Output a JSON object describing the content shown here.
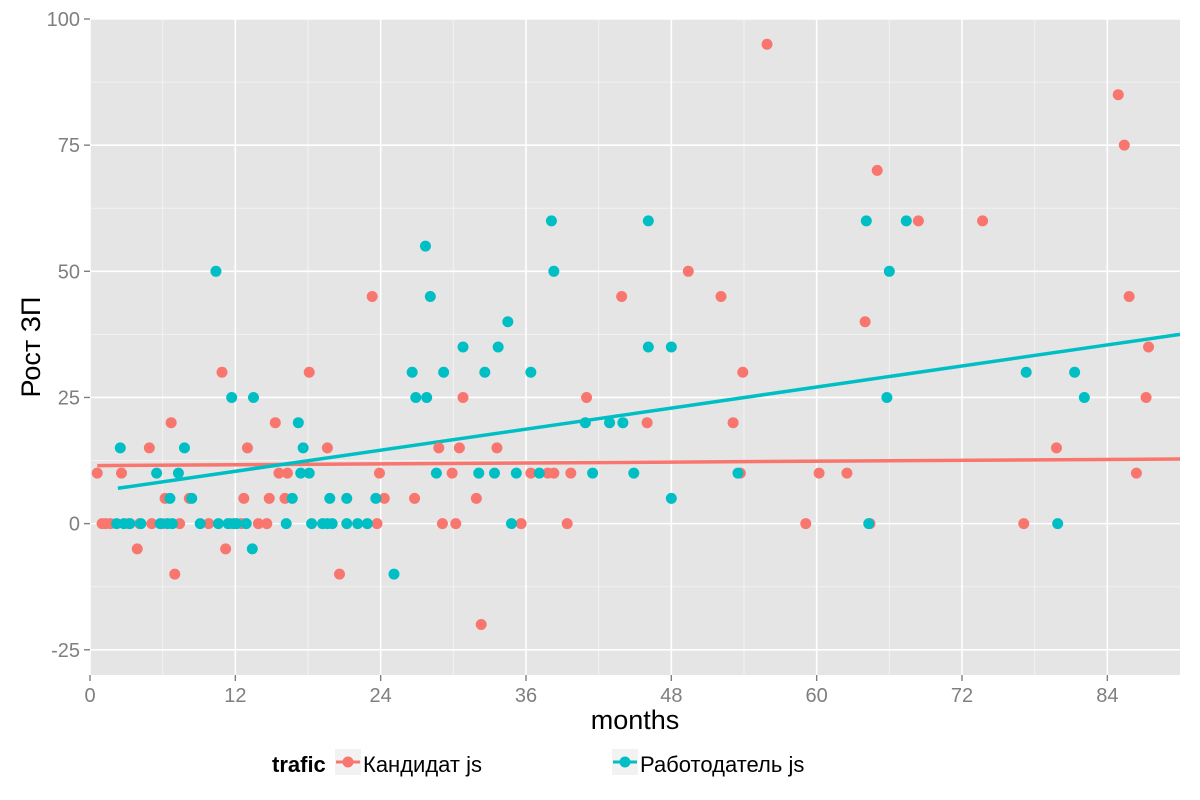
{
  "chart_data": {
    "type": "scatter",
    "xlabel": "months",
    "ylabel": "Рост ЗП",
    "xlim": [
      0,
      90
    ],
    "ylim": [
      -30,
      100
    ],
    "x_ticks": [
      0,
      12,
      24,
      36,
      48,
      60,
      72,
      84
    ],
    "y_ticks": [
      -25,
      0,
      25,
      50,
      75,
      100
    ],
    "grid": true,
    "legend": {
      "title": "trafic",
      "position": "bottom"
    },
    "series": [
      {
        "name": "Кандидат js",
        "color": "#F8766D",
        "points": [
          [
            0.6,
            10
          ],
          [
            1,
            0
          ],
          [
            1.3,
            0
          ],
          [
            1.7,
            0
          ],
          [
            2.6,
            10
          ],
          [
            3.2,
            0
          ],
          [
            3.9,
            -5
          ],
          [
            4.1,
            0
          ],
          [
            4.9,
            15
          ],
          [
            5.1,
            0
          ],
          [
            6,
            0
          ],
          [
            6.2,
            5
          ],
          [
            6.7,
            20
          ],
          [
            7,
            -10
          ],
          [
            7.4,
            0
          ],
          [
            8.2,
            5
          ],
          [
            9.8,
            0
          ],
          [
            10.9,
            30
          ],
          [
            11.2,
            -5
          ],
          [
            11.6,
            0
          ],
          [
            12.5,
            0
          ],
          [
            12.7,
            5
          ],
          [
            13,
            15
          ],
          [
            13.9,
            0
          ],
          [
            14.6,
            0
          ],
          [
            14.8,
            5
          ],
          [
            15.3,
            20
          ],
          [
            15.6,
            10
          ],
          [
            16.1,
            5
          ],
          [
            16.3,
            10
          ],
          [
            18.1,
            30
          ],
          [
            19.6,
            15
          ],
          [
            20.6,
            -10
          ],
          [
            23.3,
            45
          ],
          [
            23.7,
            0
          ],
          [
            23.9,
            10
          ],
          [
            24.3,
            5
          ],
          [
            26.8,
            5
          ],
          [
            28.8,
            15
          ],
          [
            29.1,
            0
          ],
          [
            29.9,
            10
          ],
          [
            30.2,
            0
          ],
          [
            30.5,
            15
          ],
          [
            30.8,
            25
          ],
          [
            31.9,
            5
          ],
          [
            32.3,
            -20
          ],
          [
            33.6,
            15
          ],
          [
            35.6,
            0
          ],
          [
            36.4,
            10
          ],
          [
            37.8,
            10
          ],
          [
            38.3,
            10
          ],
          [
            39.4,
            0
          ],
          [
            39.7,
            10
          ],
          [
            41,
            25
          ],
          [
            43.9,
            45
          ],
          [
            46,
            20
          ],
          [
            49.4,
            50
          ],
          [
            52.1,
            45
          ],
          [
            53.1,
            20
          ],
          [
            53.7,
            10
          ],
          [
            53.9,
            30
          ],
          [
            55.9,
            95
          ],
          [
            59.1,
            0
          ],
          [
            60.2,
            10
          ],
          [
            62.5,
            10
          ],
          [
            64,
            40
          ],
          [
            64.4,
            0
          ],
          [
            65,
            70
          ],
          [
            68.4,
            60
          ],
          [
            73.7,
            60
          ],
          [
            77.1,
            0
          ],
          [
            79.8,
            15
          ],
          [
            84.9,
            85
          ],
          [
            85.4,
            75
          ],
          [
            85.8,
            45
          ],
          [
            86.4,
            10
          ],
          [
            87.2,
            25
          ],
          [
            87.4,
            35
          ]
        ],
        "trend": {
          "x": [
            0.6,
            90
          ],
          "y": [
            11.5,
            12.8
          ]
        }
      },
      {
        "name": "Работодатель js",
        "color": "#00BFC4",
        "points": [
          [
            2.2,
            0
          ],
          [
            2.5,
            15
          ],
          [
            2.8,
            0
          ],
          [
            3.3,
            0
          ],
          [
            4.2,
            0
          ],
          [
            5.5,
            10
          ],
          [
            5.8,
            0
          ],
          [
            6.4,
            0
          ],
          [
            6.6,
            5
          ],
          [
            6.8,
            0
          ],
          [
            7.3,
            10
          ],
          [
            7.8,
            15
          ],
          [
            8.4,
            5
          ],
          [
            9.1,
            0
          ],
          [
            10.4,
            50
          ],
          [
            10.6,
            0
          ],
          [
            11.4,
            0
          ],
          [
            11.7,
            25
          ],
          [
            11.9,
            0
          ],
          [
            12.1,
            0
          ],
          [
            12.9,
            0
          ],
          [
            13.4,
            -5
          ],
          [
            13.5,
            25
          ],
          [
            16.2,
            0
          ],
          [
            16.7,
            5
          ],
          [
            17.2,
            20
          ],
          [
            17.4,
            10
          ],
          [
            17.6,
            15
          ],
          [
            18.1,
            10
          ],
          [
            18.3,
            0
          ],
          [
            19.2,
            0
          ],
          [
            19.6,
            0
          ],
          [
            19.8,
            5
          ],
          [
            20,
            0
          ],
          [
            21.2,
            5
          ],
          [
            21.2,
            0
          ],
          [
            22.1,
            0
          ],
          [
            22.9,
            0
          ],
          [
            23.6,
            5
          ],
          [
            25.1,
            -10
          ],
          [
            26.6,
            30
          ],
          [
            26.9,
            25
          ],
          [
            27.7,
            55
          ],
          [
            27.8,
            25
          ],
          [
            28.1,
            45
          ],
          [
            28.6,
            10
          ],
          [
            29.2,
            30
          ],
          [
            30.8,
            35
          ],
          [
            32.1,
            10
          ],
          [
            32.6,
            30
          ],
          [
            33.4,
            10
          ],
          [
            33.7,
            35
          ],
          [
            34.5,
            40
          ],
          [
            34.8,
            0
          ],
          [
            35.2,
            10
          ],
          [
            36.4,
            30
          ],
          [
            37.1,
            10
          ],
          [
            38.1,
            60
          ],
          [
            38.3,
            50
          ],
          [
            40.9,
            20
          ],
          [
            41.5,
            10
          ],
          [
            42.9,
            20
          ],
          [
            44,
            20
          ],
          [
            44.9,
            10
          ],
          [
            46.1,
            60
          ],
          [
            46.1,
            35
          ],
          [
            48,
            35
          ],
          [
            48,
            5
          ],
          [
            53.5,
            10
          ],
          [
            64.1,
            60
          ],
          [
            64.3,
            0
          ],
          [
            66,
            50
          ],
          [
            65.8,
            25
          ],
          [
            67.4,
            60
          ],
          [
            77.3,
            30
          ],
          [
            79.9,
            0
          ],
          [
            81.3,
            30
          ],
          [
            82.1,
            25
          ]
        ],
        "trend": {
          "x": [
            2.3,
            90
          ],
          "y": [
            7,
            37.5
          ]
        }
      }
    ]
  }
}
